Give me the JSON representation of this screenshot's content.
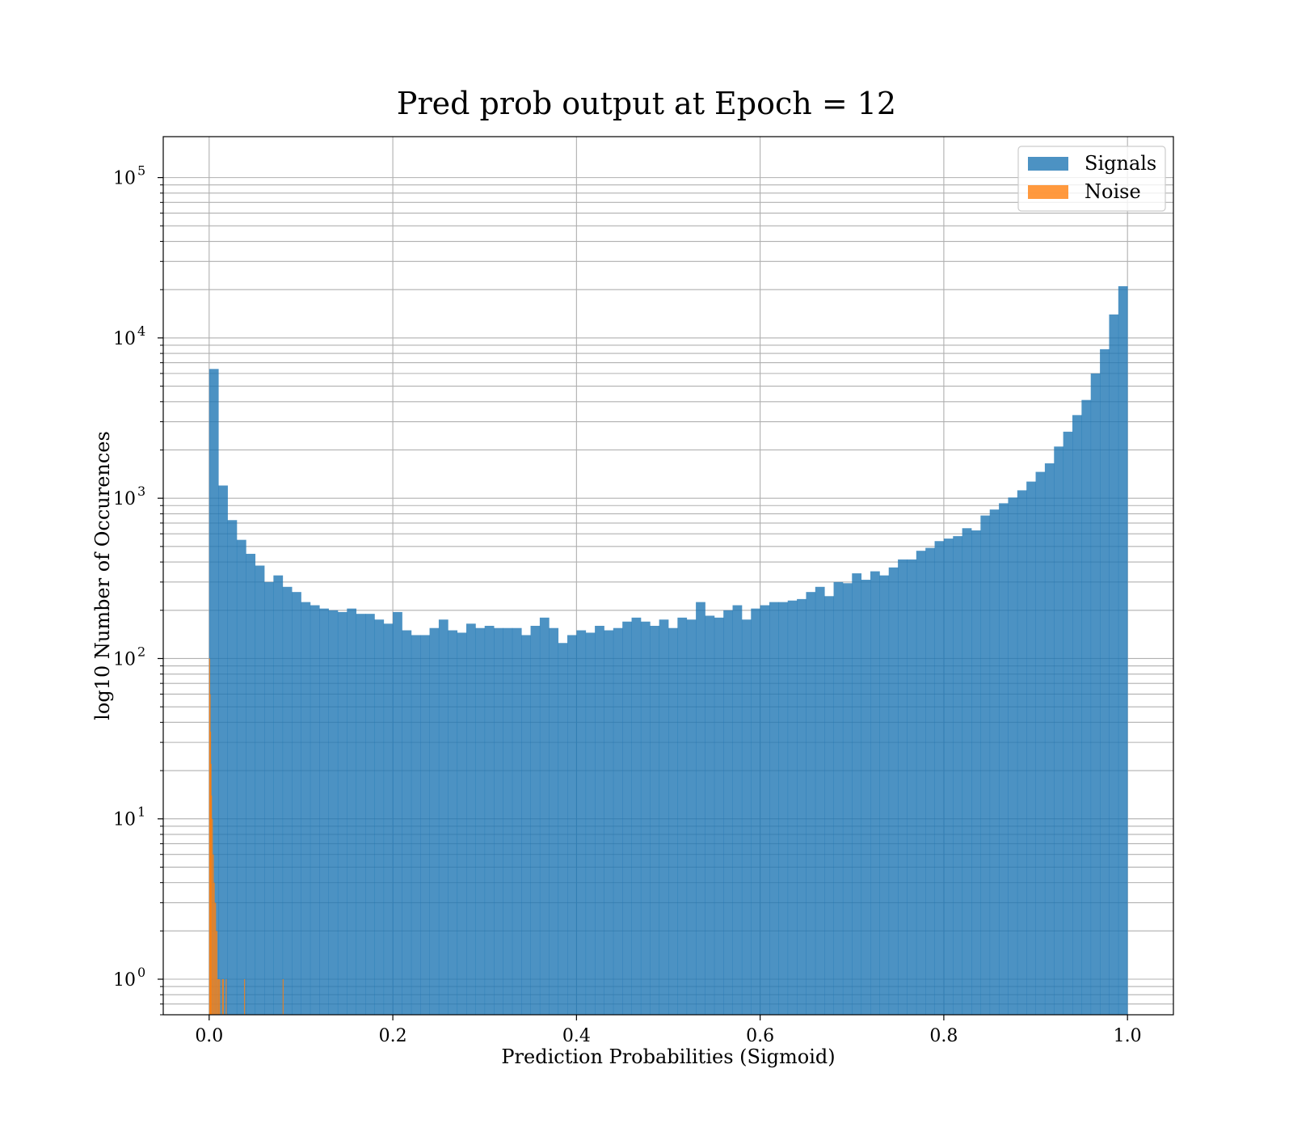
{
  "chart_data": {
    "type": "bar",
    "title": "Pred prob output at Epoch = 12",
    "xlabel": "Prediction Probabilities (Sigmoid)",
    "ylabel": "log10 Number of Occurences",
    "yscale": "log",
    "xlim": [
      -0.05,
      1.05
    ],
    "ylim": [
      0.6,
      180000
    ],
    "grid": true,
    "legend_position": "upper right",
    "x_ticks": [
      "0.0",
      "0.2",
      "0.4",
      "0.6",
      "0.8",
      "1.0"
    ],
    "y_ticks": [
      {
        "base": "10",
        "exp": "0",
        "value": 1
      },
      {
        "base": "10",
        "exp": "1",
        "value": 10
      },
      {
        "base": "10",
        "exp": "2",
        "value": 100
      },
      {
        "base": "10",
        "exp": "3",
        "value": 1000
      },
      {
        "base": "10",
        "exp": "4",
        "value": 10000
      },
      {
        "base": "10",
        "exp": "5",
        "value": 100000
      }
    ],
    "series": [
      {
        "name": "Signals",
        "color": "#1f77b4",
        "bin_edges_range": [
          0.0,
          1.0
        ],
        "bin_width": 0.01,
        "values": [
          6400,
          1200,
          730,
          550,
          450,
          380,
          300,
          330,
          280,
          260,
          225,
          215,
          205,
          200,
          195,
          205,
          190,
          190,
          175,
          165,
          195,
          150,
          140,
          140,
          155,
          175,
          150,
          145,
          165,
          155,
          160,
          155,
          155,
          155,
          140,
          160,
          180,
          155,
          125,
          140,
          150,
          145,
          160,
          150,
          155,
          170,
          180,
          170,
          160,
          175,
          155,
          180,
          175,
          225,
          185,
          180,
          200,
          215,
          175,
          205,
          215,
          225,
          225,
          230,
          235,
          260,
          280,
          245,
          300,
          295,
          340,
          310,
          350,
          330,
          370,
          415,
          415,
          470,
          490,
          540,
          560,
          580,
          650,
          630,
          780,
          850,
          930,
          1010,
          1120,
          1270,
          1460,
          1650,
          2100,
          2600,
          3300,
          4100,
          6000,
          8500,
          14000,
          21000
        ]
      },
      {
        "name": "Noise",
        "color": "#ff7f0e",
        "bins": [
          {
            "x0": 0.0,
            "x1": 0.0005,
            "value": 100
          },
          {
            "x0": 0.0005,
            "x1": 0.001,
            "value": 60
          },
          {
            "x0": 0.001,
            "x1": 0.0015,
            "value": 35
          },
          {
            "x0": 0.0015,
            "x1": 0.002,
            "value": 22
          },
          {
            "x0": 0.002,
            "x1": 0.003,
            "value": 14
          },
          {
            "x0": 0.003,
            "x1": 0.004,
            "value": 10
          },
          {
            "x0": 0.004,
            "x1": 0.005,
            "value": 6
          },
          {
            "x0": 0.005,
            "x1": 0.006,
            "value": 4
          },
          {
            "x0": 0.006,
            "x1": 0.0075,
            "value": 3
          },
          {
            "x0": 0.0075,
            "x1": 0.009,
            "value": 2
          },
          {
            "x0": 0.009,
            "x1": 0.012,
            "value": 1
          },
          {
            "x0": 0.014,
            "x1": 0.016,
            "value": 1
          },
          {
            "x0": 0.018,
            "x1": 0.019,
            "value": 1
          },
          {
            "x0": 0.038,
            "x1": 0.039,
            "value": 1
          },
          {
            "x0": 0.08,
            "x1": 0.081,
            "value": 1
          }
        ]
      }
    ]
  }
}
